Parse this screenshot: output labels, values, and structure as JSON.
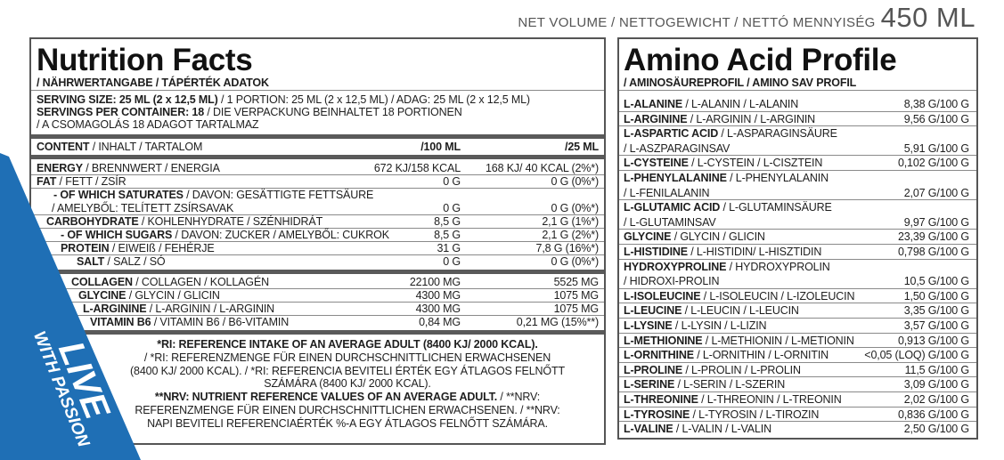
{
  "header": {
    "volume_label": "NET VOLUME / NETTOGEWICHT / NETTÓ MENNYISÉG",
    "volume": "450 ML"
  },
  "badge": {
    "line1": "LIVE",
    "line2": "WITH PASSION"
  },
  "nutrition": {
    "title": "Nutrition Facts",
    "subtitle": "/ NÄHRWERTANGABE / TÁPÉRTÉK ADATOK",
    "serving": [
      [
        {
          "b": "SERVING SIZE: 25 ML (2 x 12,5 ML)"
        },
        {
          "t": " / 1 PORTION: 25 ML (2 x 12,5 ML) / ADAG: 25 ML (2 x 12,5 ML)"
        }
      ],
      [
        {
          "b": "SERVINGS PER CONTAINER: 18"
        },
        {
          "t": " / DIE VERPACKUNG BEINHALTET 18 PORTIONEN"
        }
      ],
      [
        {
          "t": "/ A CSOMAGOLÁS 18 ADAGOT TARTALMAZ"
        }
      ]
    ],
    "columns": [
      [
        {
          "b": "CONTENT"
        },
        {
          "t": " / INHALT / TARTALOM"
        }
      ],
      "/100 ML",
      "/25 ML"
    ],
    "groups": [
      [
        {
          "label": [
            {
              "b": "ENERGY"
            },
            {
              "t": " / BRENNWERT / ENERGIA"
            }
          ],
          "per100": "672 KJ/158 KCAL",
          "per25": "168 KJ/ 40 KCAL (2%*)"
        },
        {
          "label": [
            {
              "b": "FAT"
            },
            {
              "t": " / FETT / ZSÍR"
            }
          ],
          "per100": "0 G",
          "per25": "0 G (0%*)"
        },
        {
          "label": [
            {
              "b": "- OF WHICH SATURATES"
            },
            {
              "t": " / DAVON: GESÄTTIGTE FETTSÄURE"
            }
          ]
        },
        {
          "label": [
            {
              "t": "/ AMELYBŐL: TELÍTETT ZSÍRSAVAK"
            }
          ],
          "per100": "0 G",
          "per25": "0 G (0%*)"
        },
        {
          "label": [
            {
              "b": "CARBOHYDRATE"
            },
            {
              "t": " / KOHLENHYDRATE / SZÉNHIDRÁT"
            }
          ],
          "per100": "8,5 G",
          "per25": "2,1 G (1%*)"
        },
        {
          "label": [
            {
              "b": "- OF WHICH SUGARS"
            },
            {
              "t": " / DAVON: ZUCKER / AMELYBŐL: CUKROK"
            }
          ],
          "per100": "8,5 G",
          "per25": "2,1 G (2%*)"
        },
        {
          "label": [
            {
              "b": "PROTEIN"
            },
            {
              "t": " / EIWEIß / FEHÉRJE"
            }
          ],
          "per100": "31 G",
          "per25": "7,8 G (16%*)"
        },
        {
          "label": [
            {
              "b": "SALT"
            },
            {
              "t": " / SALZ / SÓ"
            }
          ],
          "per100": "0 G",
          "per25": "0 G (0%*)"
        }
      ],
      [
        {
          "label": [
            {
              "b": "COLLAGEN"
            },
            {
              "t": " / COLLAGEN / KOLLAGÉN"
            }
          ],
          "per100": "22100 MG",
          "per25": "5525 MG"
        },
        {
          "label": [
            {
              "b": "GLYCINE"
            },
            {
              "t": " / GLYCIN / GLICIN"
            }
          ],
          "per100": "4300 MG",
          "per25": "1075 MG"
        },
        {
          "label": [
            {
              "b": "L-ARGININE"
            },
            {
              "t": " / L-ARGININ / L-ARGININ"
            }
          ],
          "per100": "4300 MG",
          "per25": "1075 MG"
        },
        {
          "label": [
            {
              "b": "VITAMIN B6"
            },
            {
              "t": " / VITAMIN B6 / B6-VITAMIN"
            }
          ],
          "per100": "0,84 MG",
          "per25": "0,21 MG (15%**)"
        }
      ]
    ],
    "footnotes": [
      [
        {
          "b": "*RI: REFERENCE INTAKE OF AN AVERAGE ADULT (8400 KJ/ 2000 KCAL)."
        }
      ],
      [
        {
          "t": "/ *RI: REFERENZMENGE FÜR EINEN DURCHSCHNITTLICHEN ERWACHSENEN"
        }
      ],
      [
        {
          "t": "(8400 KJ/ 2000 KCAL). / *RI: REFERENCIA BEVITELI ÉRTÉK EGY ÁTLAGOS FELNŐTT"
        }
      ],
      [
        {
          "t": "SZÁMÁRA (8400 KJ/ 2000 KCAL)."
        }
      ],
      [
        {
          "b": "**NRV: NUTRIENT REFERENCE VALUES OF AN AVERAGE ADULT."
        },
        {
          "t": " / **NRV:"
        }
      ],
      [
        {
          "t": "REFERENZMENGE FÜR EINEN DURCHSCHNITTLICHEN ERWACHSENEN. / **NRV:"
        }
      ],
      [
        {
          "t": "NAPI BEVITELI REFERENCIAÉRTÉK %-A EGY ÁTLAGOS FELNŐTT SZÁMÁRA."
        }
      ]
    ]
  },
  "amino": {
    "title": "Amino Acid Profile",
    "subtitle": "/ AMINOSÄUREPROFIL / AMINO SAV PROFIL",
    "rows": [
      {
        "name": "L-ALANINE",
        "rest": " / L-ALANIN / L-ALANIN",
        "value": "8,38 G/100 G"
      },
      {
        "name": "L-ARGININE",
        "rest": " / L-ARGININ / L-ARGININ",
        "value": "9,56 G/100 G"
      },
      {
        "name": "L-ASPARTIC ACID",
        "rest": " / L-ASPARAGINSÄURE",
        "cont": "/ L-ASZPARAGINSAV",
        "value": "5,91 G/100 G"
      },
      {
        "name": "L-CYSTEINE",
        "rest": " / L-CYSTEIN / L-CISZTEIN",
        "value": "0,102 G/100 G"
      },
      {
        "name": "L-PHENYLALANINE",
        "rest": " / L-PHENYLALANIN",
        "cont": "/ L-FENILALANIN",
        "value": "2,07 G/100 G"
      },
      {
        "name": "L-GLUTAMIC ACID",
        "rest": " / L-GLUTAMINSÄURE",
        "cont": "/ L-GLUTAMINSAV",
        "value": "9,97 G/100 G"
      },
      {
        "name": "GLYCINE",
        "rest": " / GLYCIN / GLICIN",
        "value": "23,39 G/100 G"
      },
      {
        "name": "L-HISTIDINE",
        "rest": " / L-HISTIDIN/ L-HISZTIDIN",
        "value": "0,798 G/100 G"
      },
      {
        "name": "HYDROXYPROLINE",
        "rest": " / HYDROXYPROLIN",
        "cont": "/ HIDROXI-PROLIN",
        "value": "10,5 G/100 G"
      },
      {
        "name": "L-ISOLEUCINE",
        "rest": " / L-ISOLEUCIN / L-IZOLEUCIN",
        "value": "1,50 G/100 G"
      },
      {
        "name": "L-LEUCINE",
        "rest": " / L-LEUCIN / L-LEUCIN",
        "value": "3,35 G/100 G"
      },
      {
        "name": "L-LYSINE",
        "rest": " / L-LYSIN / L-LIZIN",
        "value": "3,57 G/100 G"
      },
      {
        "name": "L-METHIONINE",
        "rest": " / L-METHIONIN / L-METIONIN",
        "value": "0,913 G/100 G"
      },
      {
        "name": "L-ORNITHINE",
        "rest": " / L-ORNITHIN / L-ORNITIN",
        "value": "<0,05 (LOQ) G/100 G"
      },
      {
        "name": "L-PROLINE",
        "rest": " / L-PROLIN / L-PROLIN",
        "value": "11,5 G/100 G"
      },
      {
        "name": "L-SERINE",
        "rest": " / L-SERIN / L-SZERIN",
        "value": "3,09 G/100 G"
      },
      {
        "name": "L-THREONINE",
        "rest": " / L-THREONIN / L-TREONIN",
        "value": "2,02 G/100 G"
      },
      {
        "name": "L-TYROSINE",
        "rest": " / L-TYROSIN / L-TIROZIN",
        "value": "0,836 G/100 G"
      },
      {
        "name": "L-VALINE",
        "rest": " / L-VALIN / L-VALIN",
        "value": "2,50 G/100 G"
      }
    ]
  }
}
